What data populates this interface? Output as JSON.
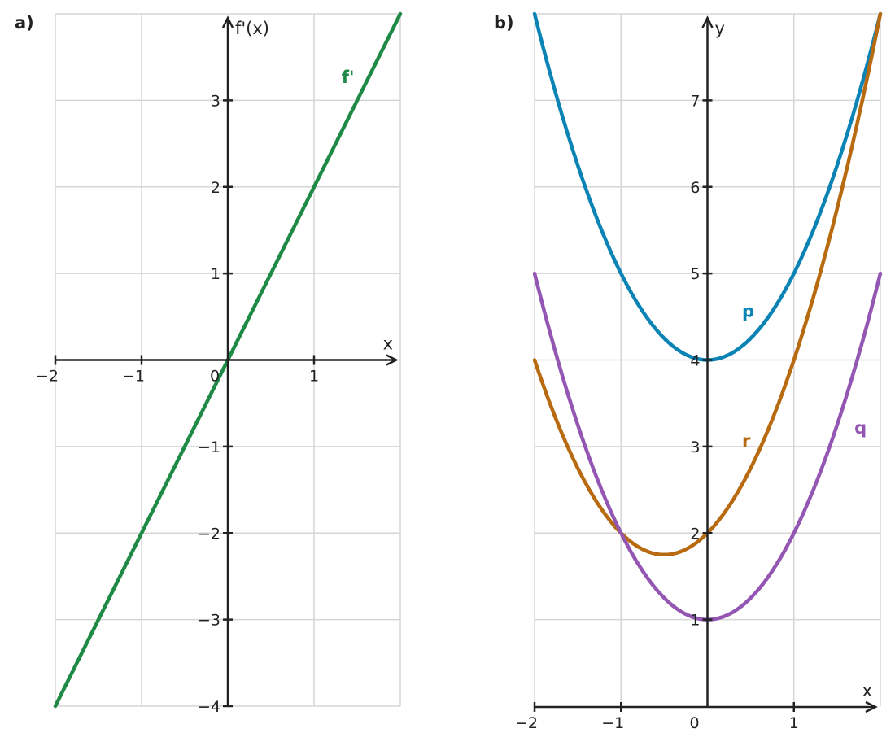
{
  "chart_data": [
    {
      "panel_label": "a)",
      "type": "line",
      "xlabel": "x",
      "ylabel": "f'(x)",
      "xlim": [
        -2,
        2
      ],
      "ylim": [
        -4,
        4
      ],
      "xticks": [
        -2,
        -1,
        0,
        1
      ],
      "yticks": [
        -4,
        -3,
        -2,
        -1,
        1,
        2,
        3
      ],
      "grid": true,
      "series": [
        {
          "name": "f'",
          "color": "#1e8a45",
          "x": [
            -2,
            -1,
            0,
            1,
            2
          ],
          "y": [
            -4,
            -2,
            0,
            2,
            4
          ],
          "label_at": [
            1.32,
            3.2
          ]
        }
      ]
    },
    {
      "panel_label": "b)",
      "type": "line",
      "xlabel": "x",
      "ylabel": "y",
      "xlim": [
        -2,
        2
      ],
      "ylim": [
        0,
        8
      ],
      "xticks": [
        -2,
        -1,
        0,
        1
      ],
      "yticks": [
        1,
        2,
        3,
        4,
        5,
        6,
        7
      ],
      "grid": true,
      "series": [
        {
          "name": "p",
          "color": "#0b84b5",
          "x": [
            -2,
            -1.5,
            -1,
            -0.5,
            0,
            0.5,
            1,
            1.5,
            2
          ],
          "y": [
            8,
            6.25,
            5,
            4.25,
            4,
            4.25,
            5,
            6.25,
            8
          ],
          "label_at": [
            0.4,
            4.5
          ]
        },
        {
          "name": "r",
          "color": "#b86a10",
          "x": [
            -2,
            -1.5,
            -1,
            -0.5,
            0,
            0.5,
            1,
            1.5,
            2
          ],
          "y": [
            4,
            2.75,
            2,
            1.75,
            2,
            2.75,
            4,
            5.75,
            8
          ],
          "label_at": [
            0.4,
            3.0
          ]
        },
        {
          "name": "q",
          "color": "#9456b3",
          "x": [
            -2,
            -1.5,
            -1,
            -0.5,
            0,
            0.5,
            1,
            1.5,
            2
          ],
          "y": [
            5,
            3.25,
            2,
            1.25,
            1,
            1.25,
            2,
            3.25,
            5
          ],
          "label_at": [
            1.7,
            3.15
          ]
        }
      ]
    }
  ]
}
